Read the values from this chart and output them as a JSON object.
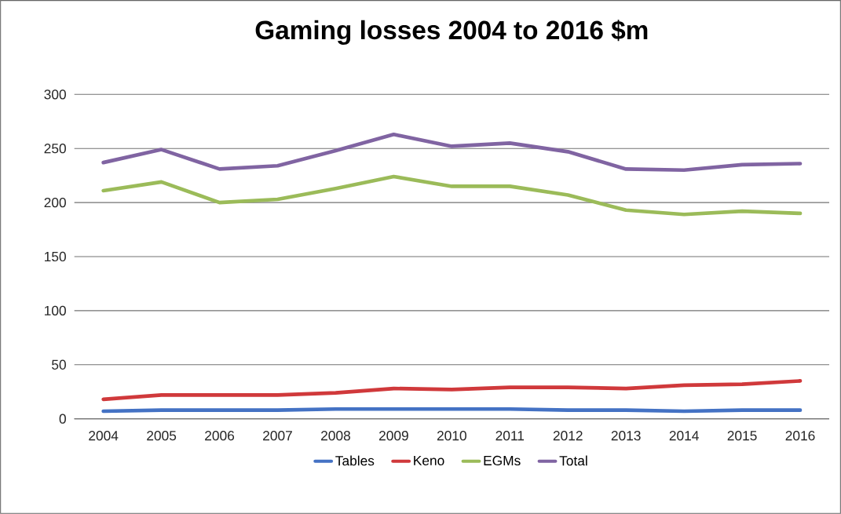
{
  "chart_data": {
    "type": "line",
    "title": "Gaming losses 2004 to 2016 $m",
    "categories": [
      "2004",
      "2005",
      "2006",
      "2007",
      "2008",
      "2009",
      "2010",
      "2011",
      "2012",
      "2013",
      "2014",
      "2015",
      "2016"
    ],
    "series": [
      {
        "name": "Tables",
        "color": "#4472c4",
        "values": [
          7,
          8,
          8,
          8,
          9,
          9,
          9,
          9,
          8,
          8,
          7,
          8,
          8
        ]
      },
      {
        "name": "Keno",
        "color": "#d0393b",
        "values": [
          18,
          22,
          22,
          22,
          24,
          28,
          27,
          29,
          29,
          28,
          31,
          32,
          35
        ]
      },
      {
        "name": "EGMs",
        "color": "#9bbb59",
        "values": [
          211,
          219,
          200,
          203,
          213,
          224,
          215,
          215,
          207,
          193,
          189,
          192,
          190
        ]
      },
      {
        "name": "Total",
        "color": "#8064a2",
        "values": [
          237,
          249,
          231,
          234,
          248,
          263,
          252,
          255,
          247,
          231,
          230,
          235,
          236
        ]
      }
    ],
    "ylim": [
      0,
      300
    ],
    "yticks": [
      0,
      50,
      100,
      150,
      200,
      250,
      300
    ],
    "grid": "y",
    "legend": "bottom",
    "line_style": "solid"
  }
}
